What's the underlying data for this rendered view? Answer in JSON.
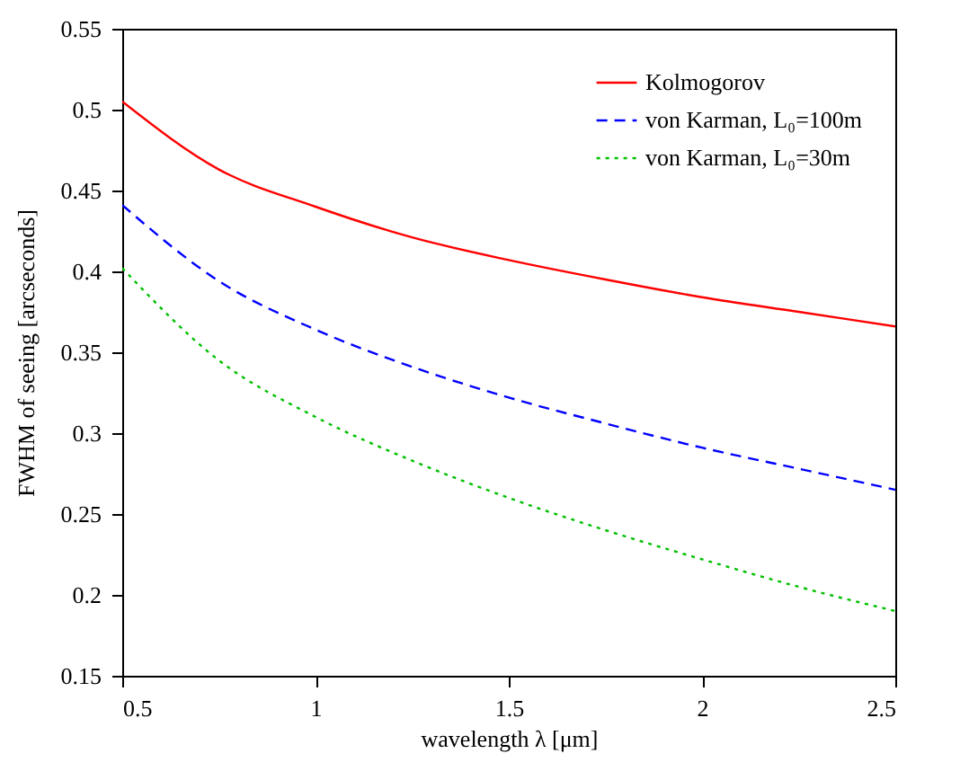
{
  "chart_data": {
    "type": "line",
    "xlabel": "wavelength λ [μm]",
    "ylabel": "FWHM of seeing [arcseconds]",
    "x": [
      0.5,
      0.75,
      1,
      1.25,
      1.5,
      1.75,
      2,
      2.25,
      2.5
    ],
    "series": [
      {
        "name": "Kolmogorov",
        "color": "#ff0000",
        "line_style": "solid",
        "values": [
          0.505,
          0.463,
          0.44,
          0.421,
          0.407,
          0.395,
          0.384,
          0.375,
          0.366
        ]
      },
      {
        "name": "von Karman, L₀=100m",
        "color": "#0000ff",
        "line_style": "dashed",
        "values": [
          0.441,
          0.394,
          0.364,
          0.341,
          0.322,
          0.306,
          0.291,
          0.278,
          0.265
        ]
      },
      {
        "name": "von Karman, L₀=30m",
        "color": "#00c000",
        "line_style": "dotted",
        "values": [
          0.402,
          0.345,
          0.31,
          0.283,
          0.26,
          0.24,
          0.222,
          0.205,
          0.19
        ]
      }
    ],
    "xlim": [
      0.5,
      2.5
    ],
    "xticks": [
      0.5,
      1,
      1.5,
      2,
      2.5
    ],
    "ylim": [
      0.15,
      0.55
    ],
    "yticks": [
      0.15,
      0.2,
      0.25,
      0.3,
      0.35,
      0.4,
      0.45,
      0.5,
      0.55
    ],
    "legend": "top right",
    "grid": false
  }
}
